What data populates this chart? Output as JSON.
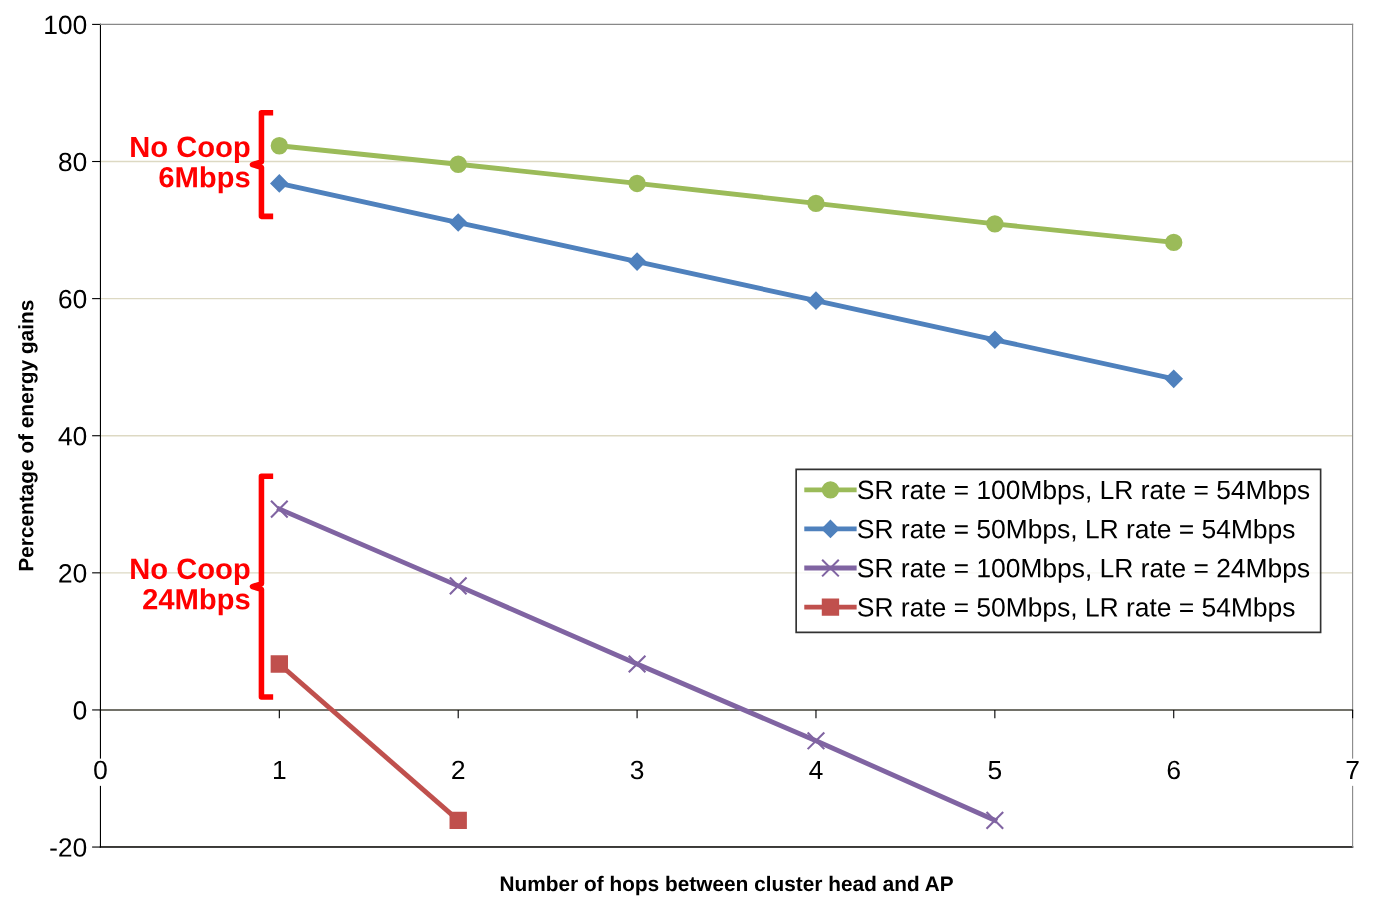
{
  "chart_data": {
    "type": "line",
    "xlabel": "Number of hops between cluster head and AP",
    "ylabel": "Percentage of energy gains",
    "x": [
      1,
      2,
      3,
      4,
      5,
      6
    ],
    "series": [
      {
        "name": "SR rate = 100Mbps, LR rate = 54Mbps",
        "color": "#9bbb59",
        "marker": "circle",
        "values": [
          82.3,
          79.6,
          76.8,
          73.9,
          70.9,
          68.2
        ]
      },
      {
        "name": "SR rate = 50Mbps, LR rate = 54Mbps",
        "color": "#4f81bd",
        "marker": "diamond",
        "values": [
          76.8,
          71.1,
          65.4,
          59.7,
          54.0,
          48.3
        ]
      },
      {
        "name": "SR rate = 100Mbps, LR rate = 24Mbps",
        "color": "#8064a2",
        "marker": "cross",
        "values": [
          29.3,
          18.1,
          6.7,
          -4.5,
          -16.1,
          null
        ]
      },
      {
        "name": "SR rate = 50Mbps, LR rate = 54Mbps",
        "color": "#c0504d",
        "marker": "square",
        "values": [
          6.7,
          -16.1,
          null,
          null,
          null,
          null
        ]
      }
    ],
    "xlim": [
      0,
      7
    ],
    "xticks": [
      0,
      1,
      2,
      3,
      4,
      5,
      6,
      7
    ],
    "ylim": [
      -20,
      100
    ],
    "yticks": [
      -20,
      0,
      20,
      40,
      60,
      80,
      100
    ],
    "grid": "y",
    "legend": "right",
    "annotations": [
      "No Coop\n6Mbps",
      "No Coop\n24Mbps"
    ]
  }
}
